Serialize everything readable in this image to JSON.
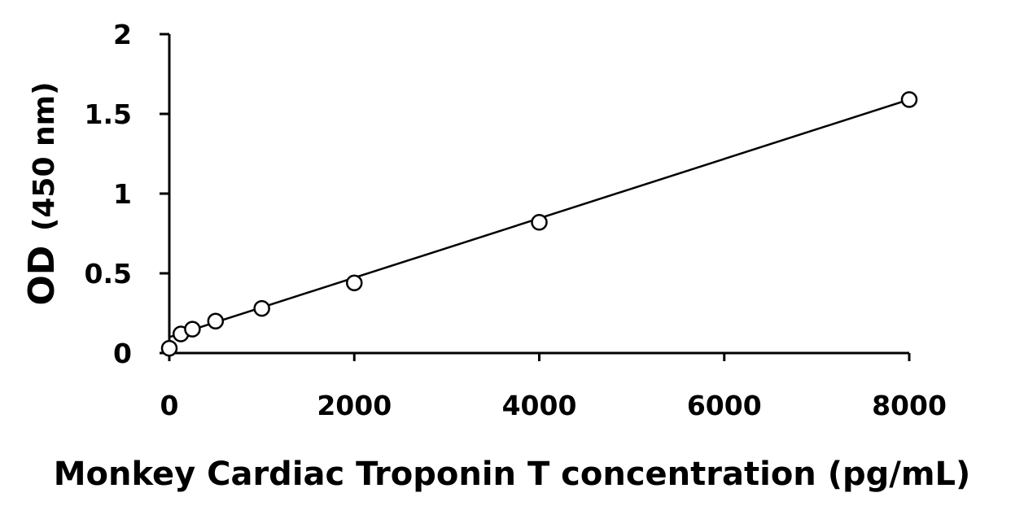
{
  "chart_data": {
    "type": "scatter",
    "xlabel": "Monkey Cardiac Troponin T concentration (pg/mL)",
    "ylabel_main": "OD",
    "ylabel_unit": "(450 nm)",
    "xlim": [
      0,
      8000
    ],
    "ylim": [
      0,
      2
    ],
    "xticks": [
      0,
      2000,
      4000,
      6000,
      8000
    ],
    "xtick_labels": [
      "0",
      "2000",
      "4000",
      "6000",
      "8000"
    ],
    "yticks": [
      0,
      0.5,
      1,
      1.5,
      2
    ],
    "ytick_labels": [
      "0",
      "0.5",
      "1",
      "1.5",
      "2"
    ],
    "grid": false,
    "series": [
      {
        "x": [
          0,
          125,
          250,
          500,
          1000,
          2000,
          4000,
          8000
        ],
        "y": [
          0.03,
          0.12,
          0.15,
          0.2,
          0.28,
          0.44,
          0.82,
          1.59
        ]
      }
    ],
    "fit_line": {
      "x": [
        0,
        8000
      ],
      "y": [
        0.1,
        1.59
      ]
    }
  }
}
